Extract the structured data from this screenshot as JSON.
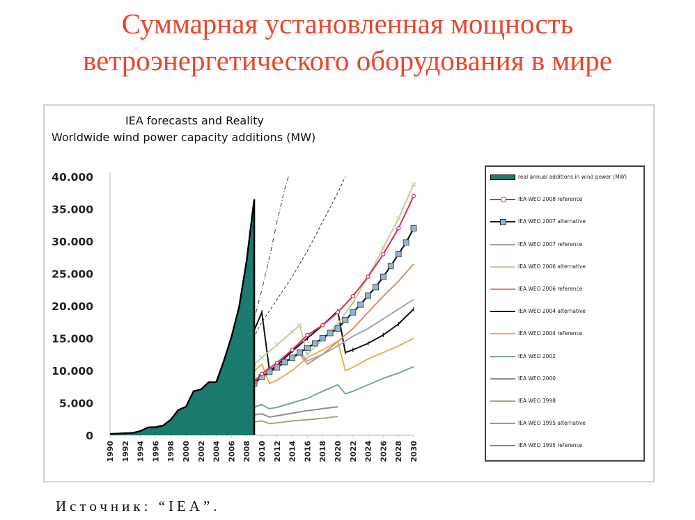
{
  "slide": {
    "title_line1": "Суммарная установленная мощность",
    "title_line2": "ветроэнергетического оборудования в мире",
    "title_color": "#e8462c",
    "source": "Источник: “IEA”."
  },
  "chart_data": {
    "type": "line",
    "title": "IEA forecasts and Reality",
    "subtitle": "Worldwide wind power capacity additions (MW)",
    "xlabel": "",
    "ylabel": "",
    "x_ticks": [
      1990,
      1992,
      1994,
      1996,
      1998,
      2000,
      2002,
      2004,
      2006,
      2008,
      2010,
      2012,
      2014,
      2016,
      2018,
      2020,
      2022,
      2024,
      2026,
      2028,
      2030
    ],
    "xlim": [
      1990,
      2030
    ],
    "y_ticks": [
      "0",
      "5.000",
      "10.000",
      "15.000",
      "20.000",
      "25.000",
      "30.000",
      "35.000",
      "40.000"
    ],
    "ylim": [
      0,
      40000
    ],
    "grid": false,
    "legend_position": "right",
    "series": [
      {
        "name": "real annual additions in wind power (MW)",
        "style": "area",
        "color": "#1a7a6e",
        "points": [
          [
            1990,
            200
          ],
          [
            1991,
            250
          ],
          [
            1992,
            300
          ],
          [
            1993,
            350
          ],
          [
            1994,
            650
          ],
          [
            1995,
            1200
          ],
          [
            1996,
            1250
          ],
          [
            1997,
            1500
          ],
          [
            1998,
            2400
          ],
          [
            1999,
            3900
          ],
          [
            2000,
            4400
          ],
          [
            2001,
            6800
          ],
          [
            2002,
            7100
          ],
          [
            2003,
            8200
          ],
          [
            2004,
            8200
          ],
          [
            2005,
            11500
          ],
          [
            2006,
            15200
          ],
          [
            2007,
            19800
          ],
          [
            2008,
            27000
          ],
          [
            2009,
            36500
          ]
        ]
      },
      {
        "name": "IEA WEO 2008 reference",
        "style": "line-circle",
        "color": "#e0245a",
        "points": [
          [
            2007,
            7000
          ],
          [
            2008,
            7500
          ],
          [
            2009,
            8200
          ],
          [
            2010,
            9500
          ],
          [
            2012,
            11200
          ],
          [
            2014,
            13200
          ],
          [
            2016,
            15500
          ],
          [
            2018,
            17000
          ],
          [
            2020,
            19000
          ],
          [
            2022,
            21500
          ],
          [
            2024,
            24500
          ],
          [
            2026,
            28000
          ],
          [
            2028,
            32000
          ],
          [
            2030,
            37000
          ]
        ]
      },
      {
        "name": "IEA WEO 2007 alternative",
        "style": "line-square",
        "color": "#1a1a1a",
        "marker_fill": "#8fb6d8",
        "points": [
          [
            2007,
            6500
          ],
          [
            2008,
            7000
          ],
          [
            2009,
            8000
          ],
          [
            2010,
            9000
          ],
          [
            2011,
            9800
          ],
          [
            2012,
            10500
          ],
          [
            2013,
            11300
          ],
          [
            2014,
            12000
          ],
          [
            2015,
            12800
          ],
          [
            2016,
            13500
          ],
          [
            2017,
            14200
          ],
          [
            2018,
            15000
          ],
          [
            2019,
            15800
          ],
          [
            2020,
            16500
          ],
          [
            2021,
            17800
          ],
          [
            2022,
            19000
          ],
          [
            2023,
            20200
          ],
          [
            2024,
            21600
          ],
          [
            2025,
            22900
          ],
          [
            2026,
            24500
          ],
          [
            2027,
            26200
          ],
          [
            2028,
            28000
          ],
          [
            2029,
            29800
          ],
          [
            2030,
            32000
          ]
        ]
      },
      {
        "name": "IEA WEO 2007 reference",
        "style": "line",
        "color": "#9aa7b8",
        "points": [
          [
            2006,
            6500
          ],
          [
            2008,
            7200
          ],
          [
            2010,
            9000
          ],
          [
            2012,
            10500
          ],
          [
            2014,
            12000
          ],
          [
            2015,
            12800
          ],
          [
            2016,
            11500
          ],
          [
            2018,
            12500
          ],
          [
            2020,
            13800
          ],
          [
            2022,
            15300
          ],
          [
            2024,
            16500
          ],
          [
            2026,
            18000
          ],
          [
            2028,
            19500
          ],
          [
            2030,
            21000
          ]
        ]
      },
      {
        "name": "IEA WEO 2006 alternative",
        "style": "line-cross",
        "color": "#b8d398",
        "points": [
          [
            2005,
            5500
          ],
          [
            2007,
            8000
          ],
          [
            2009,
            11000
          ],
          [
            2010,
            12000
          ],
          [
            2012,
            14000
          ],
          [
            2014,
            16000
          ],
          [
            2015,
            17000
          ],
          [
            2016,
            12500
          ],
          [
            2018,
            14800
          ],
          [
            2020,
            17200
          ],
          [
            2022,
            20500
          ],
          [
            2024,
            24500
          ],
          [
            2026,
            29000
          ],
          [
            2028,
            33500
          ],
          [
            2030,
            38800
          ]
        ]
      },
      {
        "name": "IEA WEO 2006 reference",
        "style": "line",
        "color": "#e08a6a",
        "points": [
          [
            2005,
            5000
          ],
          [
            2007,
            6500
          ],
          [
            2009,
            8500
          ],
          [
            2010,
            9200
          ],
          [
            2012,
            10500
          ],
          [
            2014,
            12000
          ],
          [
            2015,
            12500
          ],
          [
            2016,
            11000
          ],
          [
            2018,
            12500
          ],
          [
            2020,
            14500
          ],
          [
            2022,
            16500
          ],
          [
            2024,
            19000
          ],
          [
            2026,
            21500
          ],
          [
            2028,
            23800
          ],
          [
            2030,
            26500
          ]
        ]
      },
      {
        "name": "IEA WEO 2004 alternative",
        "style": "line-plus",
        "color": "#111111",
        "points": [
          [
            2004,
            7200
          ],
          [
            2006,
            9000
          ],
          [
            2008,
            13500
          ],
          [
            2010,
            19000
          ],
          [
            2011,
            10000
          ],
          [
            2012,
            10800
          ],
          [
            2014,
            13000
          ],
          [
            2016,
            15000
          ],
          [
            2018,
            17000
          ],
          [
            2020,
            19200
          ],
          [
            2021,
            12800
          ],
          [
            2022,
            13200
          ],
          [
            2024,
            14200
          ],
          [
            2026,
            15500
          ],
          [
            2028,
            17200
          ],
          [
            2030,
            19500
          ]
        ]
      },
      {
        "name": "IEA WEO 2004 reference",
        "style": "line",
        "color": "#f0ac4a",
        "points": [
          [
            2004,
            5500
          ],
          [
            2006,
            7000
          ],
          [
            2008,
            8800
          ],
          [
            2010,
            11000
          ],
          [
            2011,
            8000
          ],
          [
            2012,
            8500
          ],
          [
            2014,
            10000
          ],
          [
            2016,
            12000
          ],
          [
            2018,
            13200
          ],
          [
            2020,
            14500
          ],
          [
            2021,
            10000
          ],
          [
            2022,
            10500
          ],
          [
            2024,
            11800
          ],
          [
            2026,
            12800
          ],
          [
            2028,
            13800
          ],
          [
            2030,
            15000
          ]
        ]
      },
      {
        "name": "IEA WEO 2002",
        "style": "line",
        "color": "#7aa2ae",
        "points": [
          [
            1998,
            1800
          ],
          [
            2000,
            2300
          ],
          [
            2002,
            2800
          ],
          [
            2004,
            3200
          ],
          [
            2006,
            3700
          ],
          [
            2008,
            4100
          ],
          [
            2010,
            4700
          ],
          [
            2011,
            4100
          ],
          [
            2012,
            4300
          ],
          [
            2014,
            5000
          ],
          [
            2016,
            5700
          ],
          [
            2018,
            6800
          ],
          [
            2020,
            7800
          ],
          [
            2021,
            6400
          ],
          [
            2022,
            6800
          ],
          [
            2024,
            7800
          ],
          [
            2026,
            8800
          ],
          [
            2028,
            9600
          ],
          [
            2030,
            10600
          ]
        ]
      },
      {
        "name": "IEA WEO 2000",
        "style": "line",
        "color": "#8e8e8e",
        "points": [
          [
            1998,
            1200
          ],
          [
            2000,
            1600
          ],
          [
            2002,
            2000
          ],
          [
            2004,
            2400
          ],
          [
            2006,
            2700
          ],
          [
            2008,
            3000
          ],
          [
            2010,
            3300
          ],
          [
            2011,
            2800
          ],
          [
            2012,
            3000
          ],
          [
            2014,
            3400
          ],
          [
            2016,
            3800
          ],
          [
            2018,
            4100
          ],
          [
            2020,
            4400
          ]
        ]
      },
      {
        "name": "IEA WEO 1998",
        "style": "line",
        "color": "#a8a874",
        "points": [
          [
            1998,
            700
          ],
          [
            2000,
            900
          ],
          [
            2002,
            1100
          ],
          [
            2004,
            1300
          ],
          [
            2006,
            1600
          ],
          [
            2008,
            1900
          ],
          [
            2010,
            2200
          ],
          [
            2011,
            1800
          ],
          [
            2012,
            1900
          ],
          [
            2014,
            2200
          ],
          [
            2016,
            2400
          ],
          [
            2018,
            2600
          ],
          [
            2020,
            2900
          ]
        ]
      },
      {
        "name": "IEA WEO 1995 alternative",
        "style": "line",
        "color": "#d4836c",
        "points": [
          [
            1996,
            1000
          ],
          [
            1998,
            1400
          ],
          [
            2000,
            2000
          ],
          [
            2002,
            2800
          ],
          [
            2004,
            3800
          ],
          [
            2006,
            5300
          ],
          [
            2008,
            7200
          ],
          [
            2010,
            9500
          ]
        ]
      },
      {
        "name": "IEA WEO 1995 reference",
        "style": "line",
        "color": "#6d8aa8",
        "points": [
          [
            1996,
            700
          ],
          [
            1998,
            900
          ],
          [
            2000,
            1300
          ],
          [
            2002,
            1700
          ],
          [
            2004,
            2200
          ],
          [
            2006,
            2900
          ],
          [
            2008,
            3800
          ],
          [
            2010,
            4800
          ]
        ]
      }
    ],
    "trend_lines": [
      {
        "style": "dash-dot",
        "color": "#333333",
        "points": [
          [
            2007,
            11000
          ],
          [
            2008,
            14000
          ],
          [
            2009,
            18000
          ],
          [
            2010,
            22500
          ],
          [
            2011,
            27500
          ],
          [
            2012,
            33000
          ],
          [
            2013,
            38000
          ],
          [
            2013.5,
            40000
          ]
        ]
      },
      {
        "style": "dashed",
        "color": "#333333",
        "points": [
          [
            2008,
            13000
          ],
          [
            2010,
            17500
          ],
          [
            2012,
            21000
          ],
          [
            2014,
            24500
          ],
          [
            2016,
            28500
          ],
          [
            2018,
            33000
          ],
          [
            2020,
            37500
          ],
          [
            2021,
            40000
          ]
        ]
      }
    ]
  }
}
